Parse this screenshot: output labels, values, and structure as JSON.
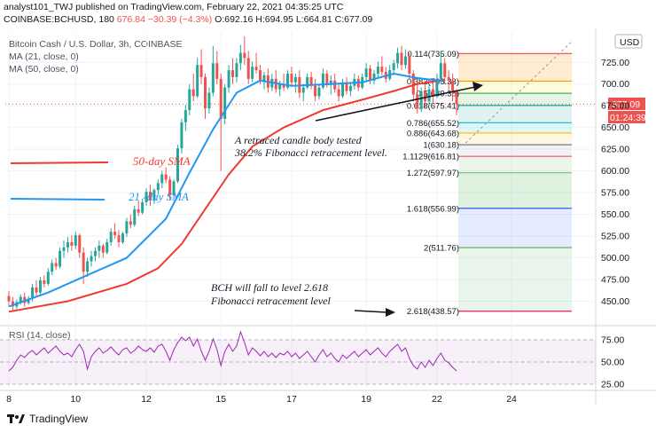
{
  "header": {
    "line1": "analyst101_TWJ published on TradingView.com, February 22, 2021 04:35:25 UTC",
    "symbol": "COINBASE:BCHUSD, 180",
    "last": "676.84",
    "change": "−30.39 (−4.3%)",
    "ohlc_o": "O:692.16",
    "ohlc_h": "H:694.95",
    "ohlc_l": "L:664.81",
    "ohlc_c": "C:677.09"
  },
  "legend": {
    "title": "Bitcoin Cash / U.S. Dollar, 3h, COINBASE",
    "ma21": "MA (21, close, 0)",
    "ma50": "MA (50, close, 0)"
  },
  "currency": "USD",
  "price_badge": "677.09",
  "timer_badge": "01:24:39",
  "annotations": {
    "sma50": "50-day SMA",
    "sma21": "21 -day SMA",
    "retrace_line1": "A retraced candle body tested",
    "retrace_line2": "38.2% Fibonacci retracement level.",
    "bch_line1": "BCH will fall to level 2.618",
    "bch_line2": "Fibonacci retracement level"
  },
  "rsi_label": "RSI (14, close)",
  "footer": {
    "brand": "TradingView"
  },
  "colors": {
    "up": "#26a69a",
    "down": "#ef5350",
    "ma21": "#2196f3",
    "ma50": "#ef3b2c",
    "rsi": "#9c27b0"
  },
  "chart_data": {
    "type": "candlestick",
    "title": "Bitcoin Cash / U.S. Dollar, 3h, COINBASE",
    "ylim": [
      425,
      760
    ],
    "y_ticks": [
      450,
      475,
      500,
      525,
      550,
      575,
      600,
      625,
      650,
      675,
      700,
      725
    ],
    "x_ticks": [
      "8",
      "10",
      "12",
      "15",
      "17",
      "19",
      "22",
      "24"
    ],
    "x_tick_index": [
      0,
      17,
      35,
      54,
      72,
      91,
      109,
      128
    ],
    "candles": [
      [
        456,
        462,
        444,
        450
      ],
      [
        450,
        455,
        440,
        444
      ],
      [
        444,
        452,
        441,
        449
      ],
      [
        449,
        458,
        446,
        455
      ],
      [
        455,
        460,
        444,
        448
      ],
      [
        448,
        456,
        446,
        453
      ],
      [
        453,
        470,
        450,
        466
      ],
      [
        466,
        474,
        456,
        460
      ],
      [
        460,
        478,
        458,
        474
      ],
      [
        474,
        480,
        466,
        470
      ],
      [
        470,
        488,
        468,
        484
      ],
      [
        484,
        498,
        480,
        494
      ],
      [
        494,
        500,
        486,
        490
      ],
      [
        490,
        512,
        488,
        508
      ],
      [
        508,
        520,
        500,
        512
      ],
      [
        512,
        524,
        506,
        518
      ],
      [
        518,
        526,
        508,
        514
      ],
      [
        514,
        530,
        510,
        526
      ],
      [
        526,
        528,
        500,
        506
      ],
      [
        506,
        512,
        470,
        484
      ],
      [
        484,
        500,
        478,
        496
      ],
      [
        496,
        508,
        490,
        502
      ],
      [
        502,
        512,
        496,
        508
      ],
      [
        508,
        520,
        500,
        514
      ],
      [
        514,
        516,
        500,
        506
      ],
      [
        506,
        522,
        504,
        518
      ],
      [
        518,
        534,
        514,
        530
      ],
      [
        530,
        540,
        522,
        526
      ],
      [
        526,
        532,
        512,
        518
      ],
      [
        518,
        530,
        516,
        528
      ],
      [
        528,
        546,
        524,
        542
      ],
      [
        542,
        550,
        534,
        538
      ],
      [
        538,
        560,
        536,
        556
      ],
      [
        556,
        566,
        548,
        552
      ],
      [
        552,
        568,
        550,
        564
      ],
      [
        564,
        580,
        560,
        576
      ],
      [
        576,
        584,
        560,
        566
      ],
      [
        566,
        580,
        562,
        578
      ],
      [
        578,
        590,
        572,
        586
      ],
      [
        586,
        600,
        580,
        596
      ],
      [
        596,
        604,
        586,
        590
      ],
      [
        590,
        594,
        566,
        572
      ],
      [
        572,
        590,
        568,
        588
      ],
      [
        588,
        630,
        586,
        626
      ],
      [
        626,
        660,
        620,
        656
      ],
      [
        656,
        676,
        646,
        670
      ],
      [
        670,
        700,
        664,
        694
      ],
      [
        694,
        712,
        680,
        686
      ],
      [
        686,
        730,
        684,
        722
      ],
      [
        722,
        740,
        700,
        708
      ],
      [
        708,
        712,
        660,
        672
      ],
      [
        672,
        696,
        666,
        690
      ],
      [
        690,
        744,
        686,
        724
      ],
      [
        724,
        738,
        700,
        706
      ],
      [
        706,
        712,
        600,
        660
      ],
      [
        660,
        700,
        654,
        696
      ],
      [
        696,
        722,
        690,
        716
      ],
      [
        716,
        730,
        700,
        708
      ],
      [
        708,
        730,
        702,
        724
      ],
      [
        724,
        745,
        716,
        736
      ],
      [
        736,
        755,
        722,
        730
      ],
      [
        730,
        738,
        700,
        706
      ],
      [
        706,
        726,
        702,
        720
      ],
      [
        720,
        736,
        712,
        716
      ],
      [
        716,
        722,
        700,
        704
      ],
      [
        704,
        714,
        694,
        710
      ],
      [
        710,
        718,
        690,
        696
      ],
      [
        696,
        712,
        692,
        706
      ],
      [
        706,
        716,
        690,
        694
      ],
      [
        694,
        704,
        686,
        700
      ],
      [
        700,
        712,
        692,
        696
      ],
      [
        696,
        716,
        694,
        712
      ],
      [
        712,
        720,
        698,
        702
      ],
      [
        702,
        712,
        690,
        708
      ],
      [
        708,
        716,
        684,
        690
      ],
      [
        690,
        700,
        680,
        696
      ],
      [
        696,
        712,
        694,
        708
      ],
      [
        708,
        714,
        694,
        698
      ],
      [
        698,
        706,
        680,
        686
      ],
      [
        686,
        700,
        682,
        696
      ],
      [
        696,
        718,
        694,
        712
      ],
      [
        712,
        716,
        696,
        700
      ],
      [
        700,
        710,
        688,
        704
      ],
      [
        704,
        712,
        690,
        694
      ],
      [
        694,
        700,
        680,
        686
      ],
      [
        686,
        706,
        684,
        702
      ],
      [
        702,
        708,
        688,
        692
      ],
      [
        692,
        702,
        686,
        698
      ],
      [
        698,
        712,
        694,
        706
      ],
      [
        706,
        710,
        692,
        696
      ],
      [
        696,
        712,
        694,
        708
      ],
      [
        708,
        724,
        704,
        718
      ],
      [
        718,
        722,
        700,
        704
      ],
      [
        704,
        716,
        700,
        712
      ],
      [
        712,
        726,
        708,
        720
      ],
      [
        720,
        732,
        710,
        714
      ],
      [
        714,
        720,
        702,
        706
      ],
      [
        706,
        722,
        704,
        716
      ],
      [
        716,
        728,
        710,
        724
      ],
      [
        724,
        742,
        718,
        736
      ],
      [
        736,
        744,
        716,
        722
      ],
      [
        722,
        740,
        718,
        732
      ],
      [
        732,
        736,
        706,
        712
      ],
      [
        712,
        716,
        680,
        688
      ],
      [
        688,
        700,
        666,
        672
      ],
      [
        672,
        696,
        668,
        692
      ],
      [
        692,
        704,
        672,
        680
      ],
      [
        680,
        698,
        676,
        694
      ],
      [
        694,
        706,
        678,
        686
      ],
      [
        686,
        712,
        684,
        706
      ],
      [
        706,
        736,
        702,
        724
      ],
      [
        724,
        730,
        700,
        708
      ],
      [
        708,
        716,
        690,
        704
      ],
      [
        704,
        712,
        680,
        692
      ],
      [
        692,
        694,
        664,
        677
      ]
    ],
    "ma21_approx": [
      [
        0,
        444
      ],
      [
        10,
        460
      ],
      [
        20,
        480
      ],
      [
        30,
        500
      ],
      [
        40,
        545
      ],
      [
        46,
        598
      ],
      [
        52,
        648
      ],
      [
        58,
        690
      ],
      [
        64,
        704
      ],
      [
        72,
        698
      ],
      [
        82,
        700
      ],
      [
        90,
        702
      ],
      [
        98,
        712
      ],
      [
        104,
        707
      ],
      [
        111,
        703
      ]
    ],
    "ma50_approx": [
      [
        0,
        438
      ],
      [
        15,
        450
      ],
      [
        30,
        470
      ],
      [
        38,
        488
      ],
      [
        44,
        516
      ],
      [
        50,
        556
      ],
      [
        56,
        596
      ],
      [
        62,
        628
      ],
      [
        70,
        650
      ],
      [
        80,
        670
      ],
      [
        90,
        682
      ],
      [
        98,
        692
      ],
      [
        104,
        700
      ],
      [
        111,
        705
      ]
    ],
    "fibonacci": [
      {
        "level": "0.114",
        "price": 735.09,
        "label": "0.114(735.09)",
        "color": "#f7525f"
      },
      {
        "level": "0.382",
        "price": 703.33,
        "label": "0.382(703.33)",
        "color": "#ff9800"
      },
      {
        "level": "0.5",
        "price": 689.38,
        "label": "0.5(689.38)",
        "color": "#4caf50"
      },
      {
        "level": "0.618",
        "price": 675.41,
        "label": "0.618(675.41)",
        "color": "#089981"
      },
      {
        "level": "0.786",
        "price": 655.52,
        "label": "0.786(655.52)",
        "color": "#00bcd4"
      },
      {
        "level": "0.886",
        "price": 643.68,
        "label": "0.886(643.68)",
        "color": "#ffc107"
      },
      {
        "level": "1",
        "price": 630.18,
        "label": "1(630.18)",
        "color": "#787b86"
      },
      {
        "level": "1.1129",
        "price": 616.81,
        "label": "1.1129(616.81)",
        "color": "#f7525f"
      },
      {
        "level": "1.272",
        "price": 597.97,
        "label": "1.272(597.97)",
        "color": "#81c784"
      },
      {
        "level": "1.618",
        "price": 556.99,
        "label": "1.618(556.99)",
        "color": "#2962ff"
      },
      {
        "level": "2",
        "price": 511.76,
        "label": "2(511.76)",
        "color": "#4caf50"
      },
      {
        "level": "2.618",
        "price": 438.57,
        "label": "2.618(438.57)",
        "color": "#e91e63"
      }
    ],
    "rsi": {
      "ticks": [
        75,
        50,
        25
      ],
      "ylim": [
        22,
        88
      ],
      "values": [
        40,
        44,
        52,
        58,
        55,
        60,
        63,
        58,
        62,
        66,
        60,
        64,
        68,
        62,
        58,
        60,
        56,
        64,
        70,
        62,
        42,
        56,
        62,
        66,
        60,
        63,
        67,
        62,
        58,
        64,
        66,
        60,
        63,
        68,
        64,
        62,
        66,
        61,
        68,
        70,
        62,
        52,
        64,
        72,
        78,
        74,
        78,
        68,
        76,
        62,
        52,
        62,
        76,
        64,
        46,
        62,
        70,
        62,
        68,
        84,
        72,
        58,
        66,
        62,
        57,
        62,
        56,
        60,
        55,
        60,
        58,
        62,
        56,
        60,
        54,
        58,
        62,
        56,
        50,
        58,
        64,
        56,
        60,
        54,
        50,
        58,
        54,
        58,
        62,
        56,
        60,
        64,
        58,
        62,
        66,
        60,
        56,
        62,
        66,
        70,
        62,
        66,
        54,
        46,
        42,
        50,
        44,
        52,
        46,
        54,
        60,
        52,
        49,
        44,
        40
      ]
    }
  }
}
